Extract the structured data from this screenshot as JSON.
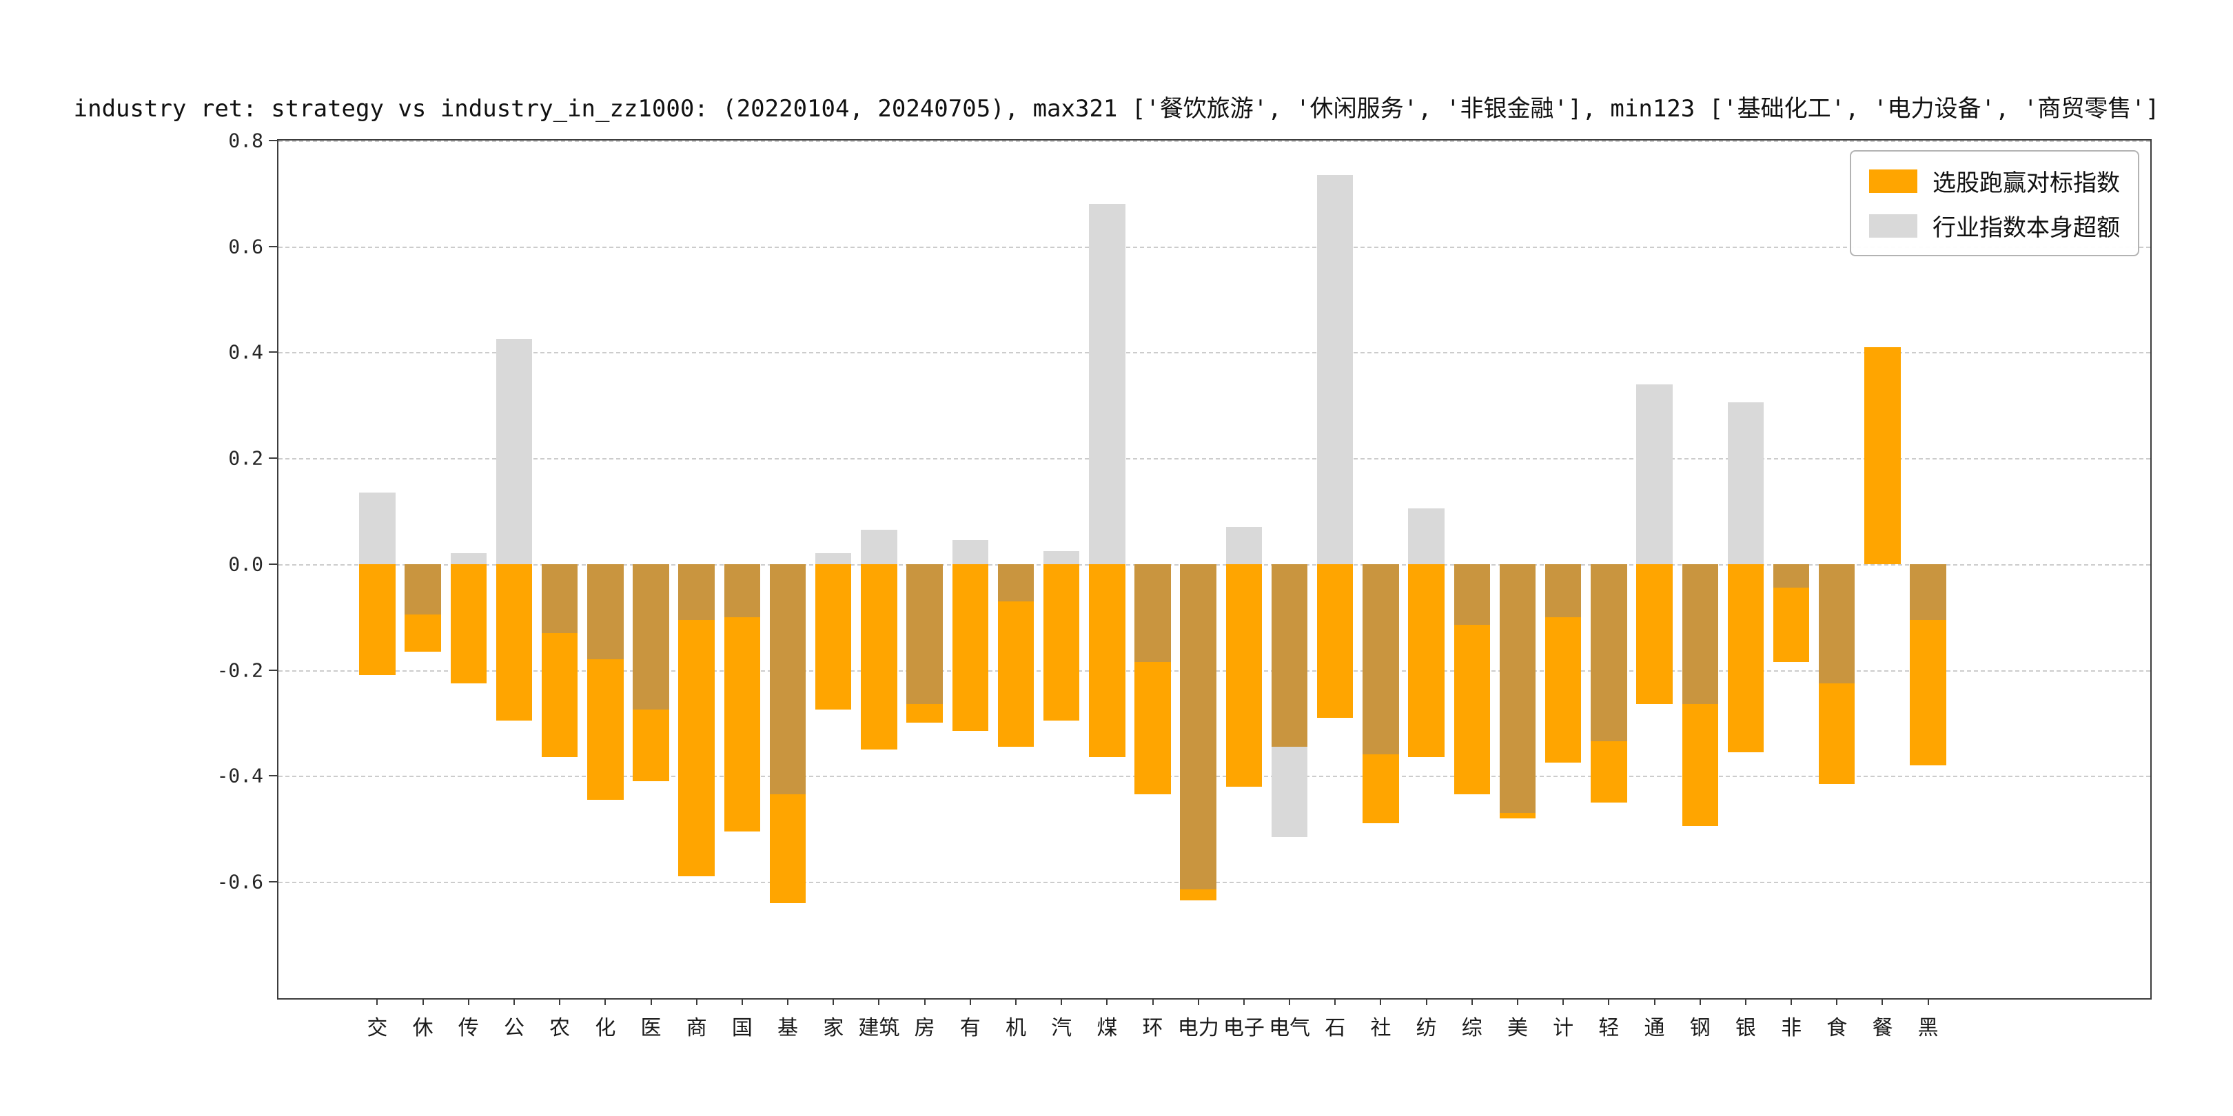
{
  "colors": {
    "orange": "#FFA500",
    "gray": "#D9D9D9",
    "overlap": "#C9953F",
    "grid": "#CCCCCC",
    "spine": "#3C3C3C"
  },
  "chart_data": {
    "type": "bar",
    "title": "industry ret: strategy vs industry_in_zz1000: (20220104, 20240705), max321 ['餐饮旅游', '休闲服务', '非银金融'], min123 ['基础化工', '电力设备', '商贸零售']",
    "categories": [
      "交",
      "休",
      "传",
      "公",
      "农",
      "化",
      "医",
      "商",
      "国",
      "基",
      "家",
      "建筑",
      "房",
      "有",
      "机",
      "汽",
      "煤",
      "环",
      "电力",
      "电子",
      "电气",
      "石",
      "社",
      "纺",
      "综",
      "美",
      "计",
      "轻",
      "通",
      "钢",
      "银",
      "非",
      "食",
      "餐",
      "黑"
    ],
    "series": [
      {
        "name": "选股跑赢对标指数",
        "color": "#FFA500",
        "values": [
          -0.21,
          -0.165,
          -0.225,
          -0.295,
          -0.365,
          -0.445,
          -0.41,
          -0.59,
          -0.505,
          -0.64,
          -0.275,
          -0.35,
          -0.3,
          -0.315,
          -0.345,
          -0.295,
          -0.365,
          -0.435,
          -0.635,
          -0.42,
          -0.345,
          -0.29,
          -0.49,
          -0.365,
          -0.435,
          -0.48,
          -0.375,
          -0.45,
          -0.265,
          -0.495,
          -0.355,
          -0.185,
          -0.415,
          0.41,
          -0.38
        ]
      },
      {
        "name": "行业指数本身超额",
        "color": "#D9D9D9",
        "values": [
          0.135,
          -0.095,
          0.02,
          0.425,
          -0.13,
          -0.18,
          -0.275,
          -0.105,
          -0.1,
          -0.435,
          0.02,
          0.065,
          -0.265,
          0.045,
          -0.07,
          0.025,
          0.68,
          -0.185,
          -0.615,
          0.07,
          -0.515,
          0.735,
          -0.36,
          0.105,
          -0.115,
          -0.47,
          -0.1,
          -0.335,
          0.34,
          -0.265,
          0.305,
          -0.045,
          -0.225,
          0.0,
          -0.105
        ]
      }
    ],
    "ylim": [
      -0.82,
      0.8
    ],
    "yticks": [
      0.8,
      0.6,
      0.4,
      0.2,
      0.0,
      -0.2,
      -0.4,
      -0.6
    ],
    "yticklabels": [
      "0.8",
      "0.6",
      "0.4",
      "0.2",
      "0.0",
      "-0.2",
      "-0.4",
      "-0.6"
    ],
    "grid": "dashed-horizontal",
    "legend_position": "upper-right",
    "bar_style": "overlaid-from-zero, overlap region renders darker tan"
  }
}
